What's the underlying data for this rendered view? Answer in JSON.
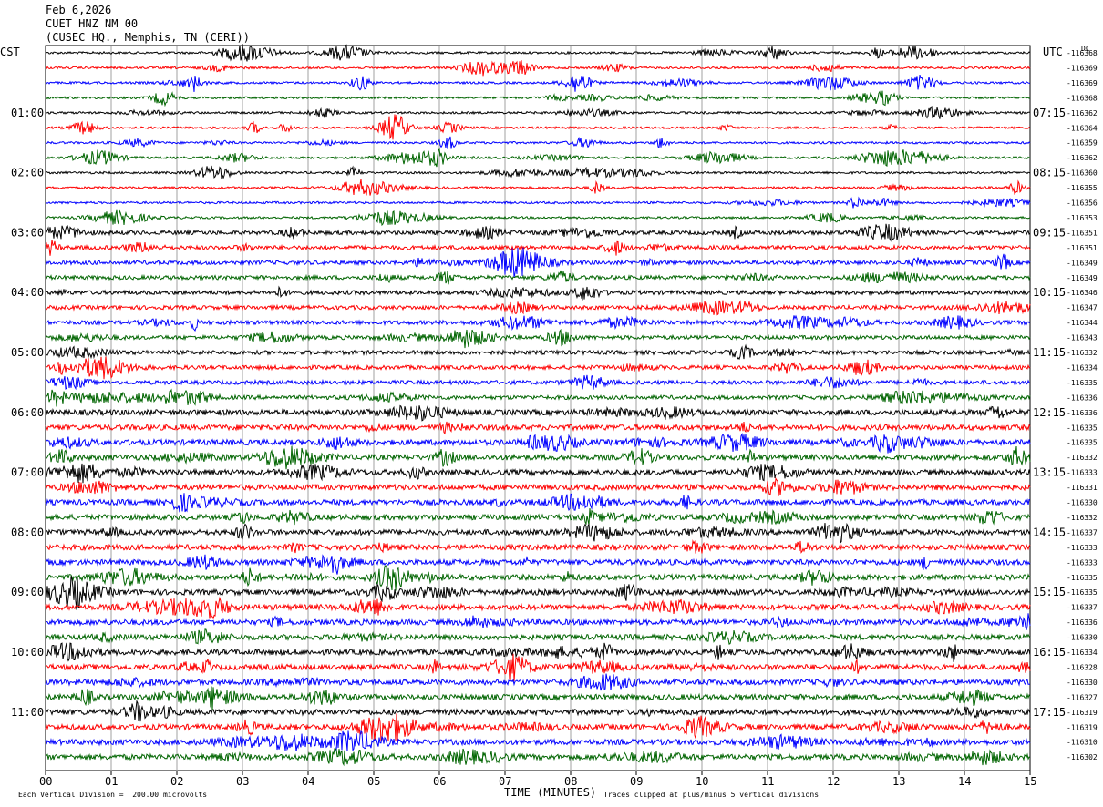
{
  "header": {
    "date": "Feb 6,2026",
    "station": "CUET HNZ NM 00",
    "location": "(CUSEC HQ., Memphis, TN (CERI))"
  },
  "left_timezone": "CST",
  "right_timezone": "UTC",
  "dc_label": "DC",
  "footer": {
    "scale_note": "Each Vertical Division =  200.00 microvolts",
    "xlabel": "TIME (MINUTES)",
    "clip_note": "Traces clipped at plus/minus 5 vertical divisions"
  },
  "colors": {
    "trace_cycle": [
      "#000000",
      "#ff0000",
      "#0000ff",
      "#006400"
    ],
    "grid": "#a0a0a0"
  },
  "chart_data": {
    "type": "line",
    "title": "CUET HNZ NM 00",
    "xlabel": "TIME (MINUTES)",
    "xlim": [
      0,
      15
    ],
    "x_ticks": [
      "00",
      "01",
      "02",
      "03",
      "04",
      "05",
      "06",
      "07",
      "08",
      "09",
      "10",
      "11",
      "12",
      "13",
      "14",
      "15"
    ],
    "left_hour_labels": [
      "01:00",
      "02:00",
      "03:00",
      "04:00",
      "05:00",
      "06:00",
      "07:00",
      "08:00",
      "09:00",
      "10:00",
      "11:00"
    ],
    "right_hour_labels": [
      "07:15",
      "08:15",
      "09:15",
      "10:15",
      "11:15",
      "12:15",
      "13:15",
      "14:15",
      "15:15",
      "16:15",
      "17:15"
    ],
    "trace_count": 48,
    "dc_offsets": [
      "-116368",
      "-116369",
      "-116369",
      "-116368",
      "-116362",
      "-116364",
      "-116359",
      "-116362",
      "-116360",
      "-116355",
      "-116356",
      "-116353",
      "-116351",
      "-116351",
      "-116349",
      "-116349",
      "-116346",
      "-116347",
      "-116344",
      "-116343",
      "-116332",
      "-116334",
      "-116335",
      "-116336",
      "-116336",
      "-116335",
      "-116335",
      "-116332",
      "-116333",
      "-116331",
      "-116330",
      "-116332",
      "-116337",
      "-116333",
      "-116333",
      "-116335",
      "-116335",
      "-116337",
      "-116336",
      "-116330",
      "-116334",
      "-116328",
      "-116330",
      "-116327",
      "-116319",
      "-116319",
      "-116310",
      "-116302"
    ]
  }
}
